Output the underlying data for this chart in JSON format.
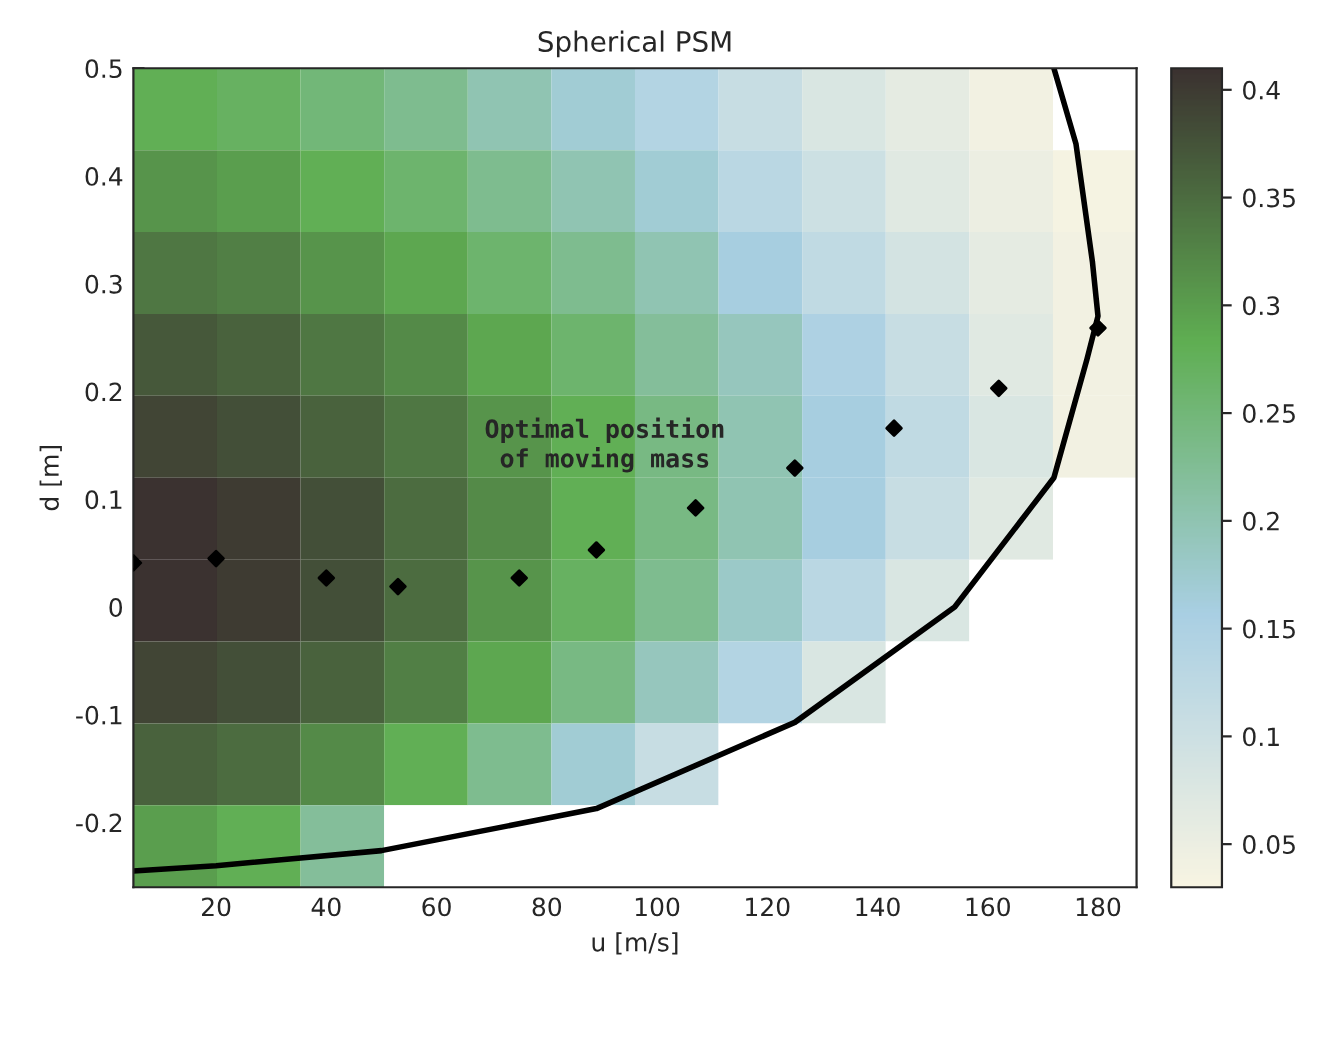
{
  "chart_data": {
    "type": "heatmap",
    "title": "Spherical PSM",
    "xlabel": "u [m/s]",
    "ylabel": "d [m]",
    "xlim": [
      5,
      187
    ],
    "ylim": [
      -0.26,
      0.5
    ],
    "xticks": [
      20,
      40,
      60,
      80,
      100,
      120,
      140,
      160,
      180
    ],
    "yticks": [
      -0.2,
      -0.1,
      0,
      0.1,
      0.2,
      0.3,
      0.4,
      0.5
    ],
    "clim": [
      0.03,
      0.41
    ],
    "cticks": [
      0.05,
      0.1,
      0.15,
      0.2,
      0.25,
      0.3,
      0.35,
      0.4
    ],
    "colors": [
      "#f8f4e2",
      "#a9cfe3",
      "#5fae52",
      "#3b3230"
    ],
    "grid": false,
    "cells": [
      [
        0.28,
        0.27,
        0.25,
        0.23,
        0.2,
        0.17,
        0.14,
        0.11,
        0.08,
        0.06,
        0.04,
        null
      ],
      [
        0.31,
        0.3,
        0.28,
        0.26,
        0.23,
        0.2,
        0.17,
        0.13,
        0.1,
        0.07,
        0.05,
        0.035
      ],
      [
        0.34,
        0.33,
        0.31,
        0.29,
        0.26,
        0.23,
        0.2,
        0.16,
        0.12,
        0.09,
        0.06,
        0.04
      ],
      [
        0.37,
        0.36,
        0.34,
        0.32,
        0.29,
        0.26,
        0.22,
        0.19,
        0.15,
        0.11,
        0.07,
        0.04
      ],
      [
        0.39,
        0.38,
        0.36,
        0.34,
        0.31,
        0.28,
        0.24,
        0.2,
        0.16,
        0.12,
        0.08,
        0.04
      ],
      [
        0.41,
        0.4,
        0.38,
        0.35,
        0.32,
        0.28,
        0.24,
        0.2,
        0.16,
        0.11,
        0.07,
        null
      ],
      [
        0.41,
        0.4,
        0.38,
        0.35,
        0.31,
        0.27,
        0.23,
        0.18,
        0.13,
        0.08,
        null,
        null
      ],
      [
        0.39,
        0.38,
        0.36,
        0.33,
        0.29,
        0.24,
        0.19,
        0.14,
        0.08,
        null,
        null,
        null
      ],
      [
        0.36,
        0.35,
        0.32,
        0.28,
        0.23,
        0.17,
        0.11,
        null,
        null,
        null,
        null,
        null
      ],
      [
        0.3,
        0.28,
        0.22,
        null,
        null,
        null,
        null,
        null,
        null,
        null,
        null,
        null
      ]
    ],
    "series": [
      {
        "type": "line",
        "color": "#000000",
        "x": [
          5,
          20,
          50,
          89,
          125,
          154,
          172,
          178,
          180,
          179,
          176,
          172
        ],
        "values": [
          -0.245,
          -0.24,
          -0.226,
          -0.187,
          -0.107,
          0.0,
          0.12,
          0.23,
          0.27,
          0.32,
          0.43,
          0.5
        ]
      },
      {
        "type": "scatter",
        "marker": "diamond",
        "color": "#000000",
        "x": [
          5,
          20,
          40,
          53,
          75,
          89,
          107,
          125,
          143,
          162,
          180
        ],
        "values": [
          0.041,
          0.045,
          0.027,
          0.019,
          0.027,
          0.053,
          0.092,
          0.129,
          0.166,
          0.203,
          0.259
        ]
      }
    ],
    "annotations": [
      "Optimal position\nof moving mass"
    ]
  }
}
